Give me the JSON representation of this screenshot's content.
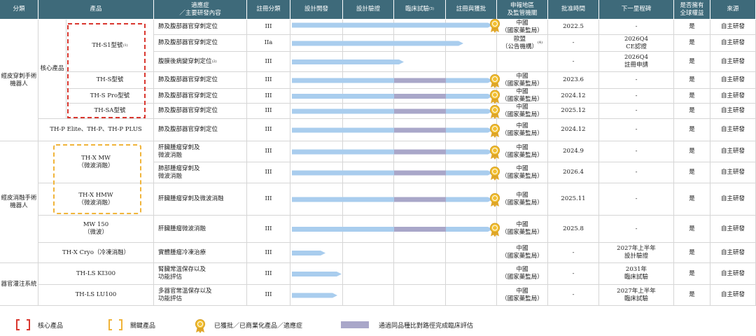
{
  "headers": [
    "分類",
    "產品",
    "適應症\n／主要研發內容",
    "註冊分類",
    "設計開發",
    "設計驗證",
    "臨床試驗",
    "註冊與獲批",
    "申報地區\n及監管機關",
    "批准時間",
    "下一里程碑",
    "是否擁有\n全球權益",
    "來源"
  ],
  "clinical_note": "(3)",
  "categories": [
    "經皮穿刺手術機器人",
    "經皮消融手術機器人",
    "器官灌注系統"
  ],
  "core_label": "核心產品",
  "products": [
    {
      "name": "TH-S1型號",
      "note": "(1)"
    },
    {
      "name": "TH-S型號"
    },
    {
      "name": "TH-S Pro型號"
    },
    {
      "name": "TH-SA型號"
    },
    {
      "name": "TH-P Elite、TH-P、TH-P PLUS"
    },
    {
      "name": "TH-X MW\n（微波消融）"
    },
    {
      "name": "TH-X HMW\n（微波消融）"
    },
    {
      "name": "MW 150\n（微波）"
    },
    {
      "name": "TH-X Cryo（冷凍消融）"
    },
    {
      "name": "TH-LS KI300"
    },
    {
      "name": "TH-LS LU100"
    }
  ],
  "rows": [
    {
      "indication": "肺及腹部器官穿刺定位",
      "class": "III",
      "region": "中國\n（國家藥監局）",
      "approval": "2022.5",
      "milestone": "-",
      "global": "是",
      "source": "自主研發"
    },
    {
      "indication": "肺及腹部器官穿刺定位",
      "class": "IIa",
      "region": "歐盟\n（公告機構）",
      "region_note": "(4)",
      "approval": "-",
      "milestone": "2026Q4\nCE認證",
      "global": "是",
      "source": "自主研發"
    },
    {
      "indication": "腹膜後病變穿刺定位",
      "indication_note": "(2)",
      "class": "III",
      "region": "",
      "approval": "-",
      "milestone": "2026Q4\n註冊申請",
      "global": "是",
      "source": "自主研發"
    },
    {
      "indication": "肺及腹部器官穿刺定位",
      "class": "III",
      "region": "中國\n（國家藥監局）",
      "approval": "2023.6",
      "milestone": "-",
      "global": "是",
      "source": "自主研發"
    },
    {
      "indication": "肺及腹部器官穿刺定位",
      "class": "III",
      "region": "中國\n（國家藥監局）",
      "approval": "2024.12",
      "milestone": "-",
      "global": "是",
      "source": "自主研發"
    },
    {
      "indication": "肺及腹部器官穿刺定位",
      "class": "III",
      "region": "中國\n（國家藥監局）",
      "approval": "2025.12",
      "milestone": "-",
      "global": "是",
      "source": "自主研發"
    },
    {
      "indication": "肺及腹部器官穿刺定位",
      "class": "III",
      "region": "中國\n（國家藥監局）",
      "approval": "2024.12",
      "milestone": "-",
      "global": "是",
      "source": "自主研發"
    },
    {
      "indication": "肝臟腫瘤穿刺及\n微波消融",
      "class": "III",
      "region": "中國\n（國家藥監局）",
      "approval": "2024.9",
      "milestone": "-",
      "global": "是",
      "source": "自主研發"
    },
    {
      "indication": "肺部腫瘤穿刺及\n微波消融",
      "class": "III",
      "region": "中國\n（國家藥監局）",
      "approval": "2026.4",
      "milestone": "-",
      "global": "是",
      "source": "自主研發"
    },
    {
      "indication": "肝臟腫瘤穿刺及微波消融",
      "class": "III",
      "region": "中國\n（國家藥監局）",
      "approval": "2025.11",
      "milestone": "-",
      "global": "是",
      "source": "自主研發"
    },
    {
      "indication": "肝臟腫瘤微波消融",
      "class": "III",
      "region": "中國\n（國家藥監局）",
      "approval": "2025.8",
      "milestone": "-",
      "global": "是",
      "source": "自主研發"
    },
    {
      "indication": "實體腫瘤冷凍治療",
      "class": "III",
      "region": "中國\n（國家藥監局）",
      "approval": "-",
      "milestone": "2027年上半年\n設計驗證",
      "global": "是",
      "source": "自主研發"
    },
    {
      "indication": "腎臟常溫保存以及\n功能評估",
      "class": "III",
      "region": "中國\n（國家藥監局）",
      "approval": "-",
      "milestone": "2031年\n臨床試驗",
      "global": "是",
      "source": "自主研發"
    },
    {
      "indication": "多器官常溫保存以及\n功能評估",
      "class": "III",
      "region": "中國\n（國家藥監局）",
      "approval": "-",
      "milestone": "2027年上半年\n臨床試驗",
      "global": "是",
      "source": "自主研發"
    }
  ],
  "legend": [
    "核心產品",
    "關鍵產品",
    "已獲批／已商業化產品／適應症",
    "通過同品種比對路徑完成臨床評估"
  ]
}
